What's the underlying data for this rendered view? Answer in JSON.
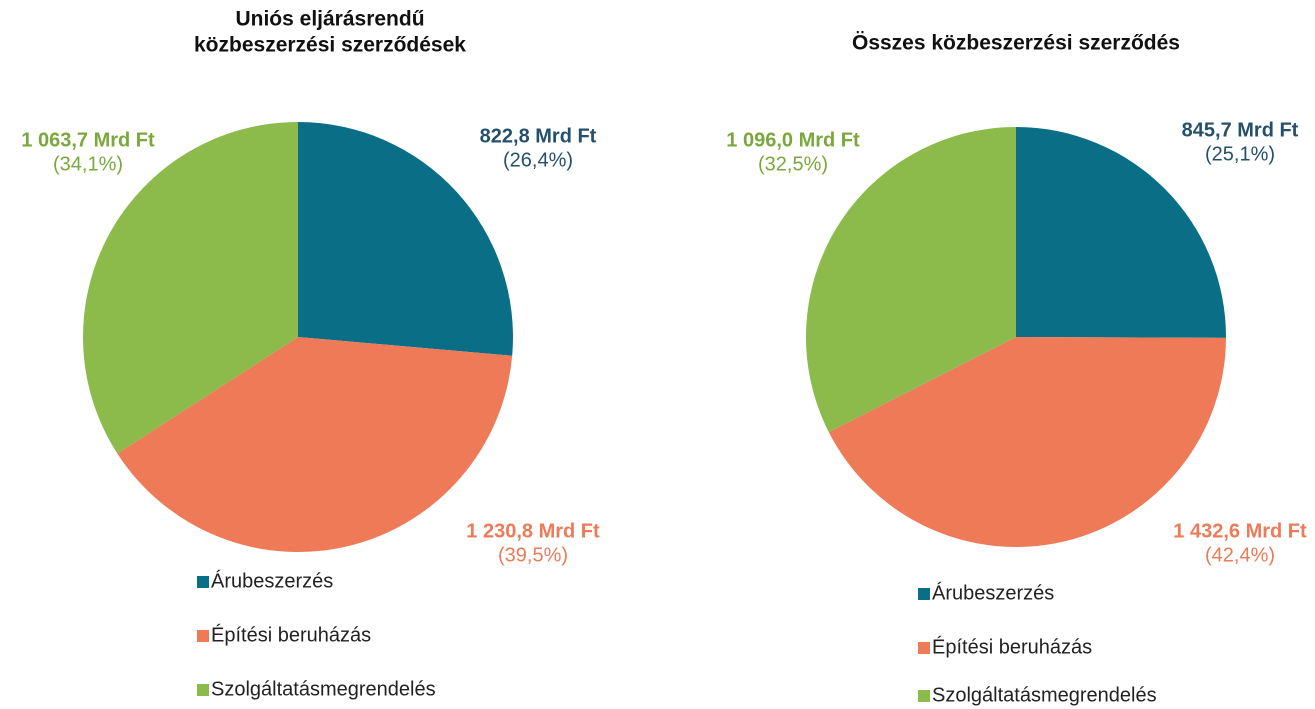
{
  "chart_data": [
    {
      "type": "pie",
      "title": [
        "Uniós eljárásrendű",
        "közbeszerzési szerződések"
      ],
      "categories": [
        "Árubeszerzés",
        "Építési beruházás",
        "Szolgáltatásmegrendelés"
      ],
      "values": [
        822.8,
        1230.8,
        1063.7
      ],
      "value_labels": [
        "822,8 Mrd Ft",
        "1 230,8 Mrd Ft",
        "1 063,7 Mrd Ft"
      ],
      "percent_labels": [
        "(26,4%)",
        "(39,5%)",
        "(34,1%)"
      ],
      "colors": [
        "#0a6f86",
        "#ee7a58",
        "#8cbb4c"
      ]
    },
    {
      "type": "pie",
      "title": "Összes közbeszerzési szerződés",
      "categories": [
        "Árubeszerzés",
        "Építési beruházás",
        "Szolgáltatásmegrendelés"
      ],
      "values": [
        845.7,
        1432.6,
        1096.0
      ],
      "value_labels": [
        "845,7 Mrd Ft",
        "1 432,6 Mrd Ft",
        "1 096,0 Mrd Ft"
      ],
      "percent_labels": [
        "(25,1%)",
        "(42,4%)",
        "(32,5%)"
      ],
      "colors": [
        "#0a6f86",
        "#ee7a58",
        "#8cbb4c"
      ]
    }
  ]
}
